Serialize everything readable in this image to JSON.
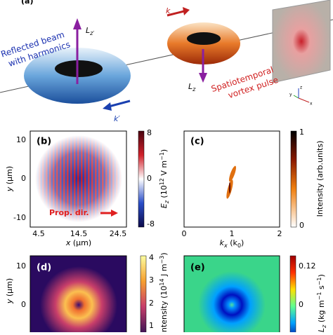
{
  "panel_a": {
    "label": "(a)",
    "lz_prime": {
      "main": "L",
      "sub": "z′"
    },
    "k": "k",
    "reflected": [
      "Reflected beam",
      "with harmonics"
    ],
    "vortex": [
      "Spatiotemporal",
      "vortex pulse"
    ],
    "lz": {
      "main": "L",
      "sub": "z"
    },
    "k_prime": "k′",
    "axes": [
      "x",
      "y",
      "z"
    ]
  },
  "panel_b": {
    "label": "(b)",
    "yticks": [
      "10",
      "0",
      "-10"
    ],
    "ylabel": {
      "var": "y",
      "unit": " (μm)"
    },
    "xticks": [
      "4.5",
      "14.5",
      "24.5"
    ],
    "xlabel": {
      "var": "x",
      "unit": " (μm)"
    },
    "annotation": "Prop. dir.",
    "cbar_ticks": [
      "8",
      "0",
      "-8"
    ],
    "cbar_label": {
      "var": "E",
      "sub": "z",
      "pre": " (10",
      "exp": "12",
      "unit": " V m",
      "unit_exp": "−1",
      "close": ")"
    }
  },
  "panel_c": {
    "label": "(c)",
    "xticks": [
      "0",
      "1",
      "2"
    ],
    "xlabel": {
      "var": "k",
      "sub": "x",
      "unit": " (k",
      "unit_sub": "0",
      "close": ")"
    },
    "cbar_ticks": [
      "1",
      "0"
    ],
    "cbar_label": "Intensity (arb.units)"
  },
  "panel_d": {
    "label": "(d)",
    "yticks": [
      "10",
      "0"
    ],
    "ylabel": {
      "var": "y",
      "unit": " (μm)"
    },
    "cbar_ticks": [
      "4",
      "3",
      "2",
      "1"
    ],
    "cbar_label": {
      "pre": "ntensity (10",
      "exp": "14",
      "unit": " J m",
      "unit_exp": "−3",
      "close": ")"
    }
  },
  "panel_e": {
    "label": "(e)",
    "cbar_ticks": [
      "0.12",
      "0"
    ],
    "cbar_label": {
      "var": "L",
      "sub": "z",
      "unit": " (kg m",
      "exp1": "−1",
      "s": " s",
      "exp2": "−1",
      "close": ")"
    }
  }
}
